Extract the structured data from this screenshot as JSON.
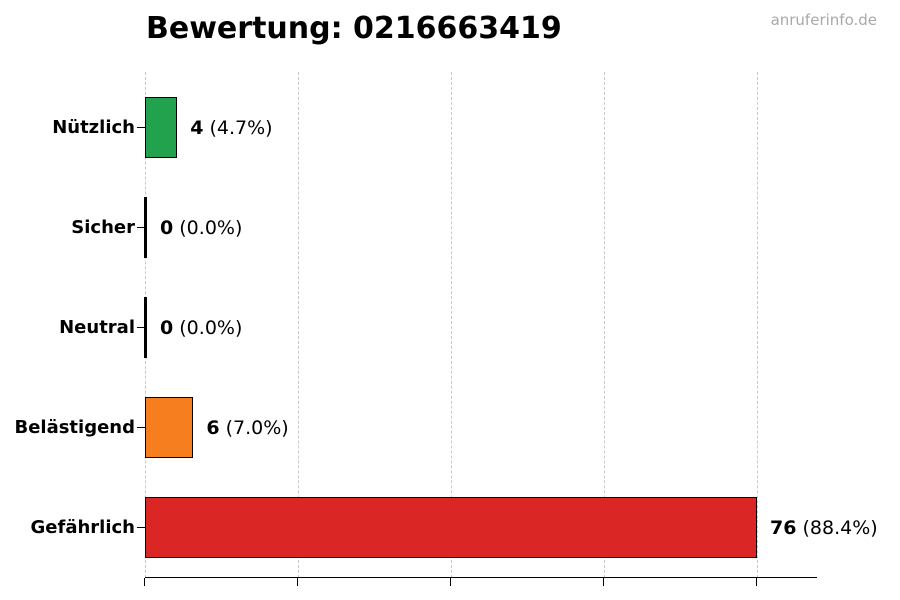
{
  "title": "Bewertung: 0216663419",
  "watermark": "anruferinfo.de",
  "chart_data": {
    "type": "bar",
    "orientation": "horizontal",
    "title": "Bewertung: 0216663419",
    "categories": [
      "Nützlich",
      "Sicher",
      "Neutral",
      "Belästigend",
      "Gefährlich"
    ],
    "values": [
      4,
      0,
      0,
      6,
      76
    ],
    "value_labels": [
      "4",
      "0",
      "0",
      "6",
      "76"
    ],
    "percent_labels": [
      "(4.7%)",
      "(0.0%)",
      "(0.0%)",
      "(7.0%)",
      "(88.4%)"
    ],
    "bar_colors": [
      "#23a24d",
      "#000000",
      "#000000",
      "#f67e1e",
      "#da2726"
    ],
    "xlim": [
      0,
      76
    ],
    "x_gridlines": [
      0,
      19,
      38,
      57,
      76
    ],
    "x_tick_labels": [],
    "grid": "vertical-dashed",
    "legend": "none",
    "xlabel": "",
    "ylabel": ""
  },
  "colors": {
    "green": "#23a24d",
    "orange": "#f67e1e",
    "red": "#da2726",
    "gridline": "#c9c9c9",
    "axis": "#000000",
    "bar_border": "#000000",
    "watermark_text": "#a9a9a9",
    "title_text": "#000000"
  }
}
